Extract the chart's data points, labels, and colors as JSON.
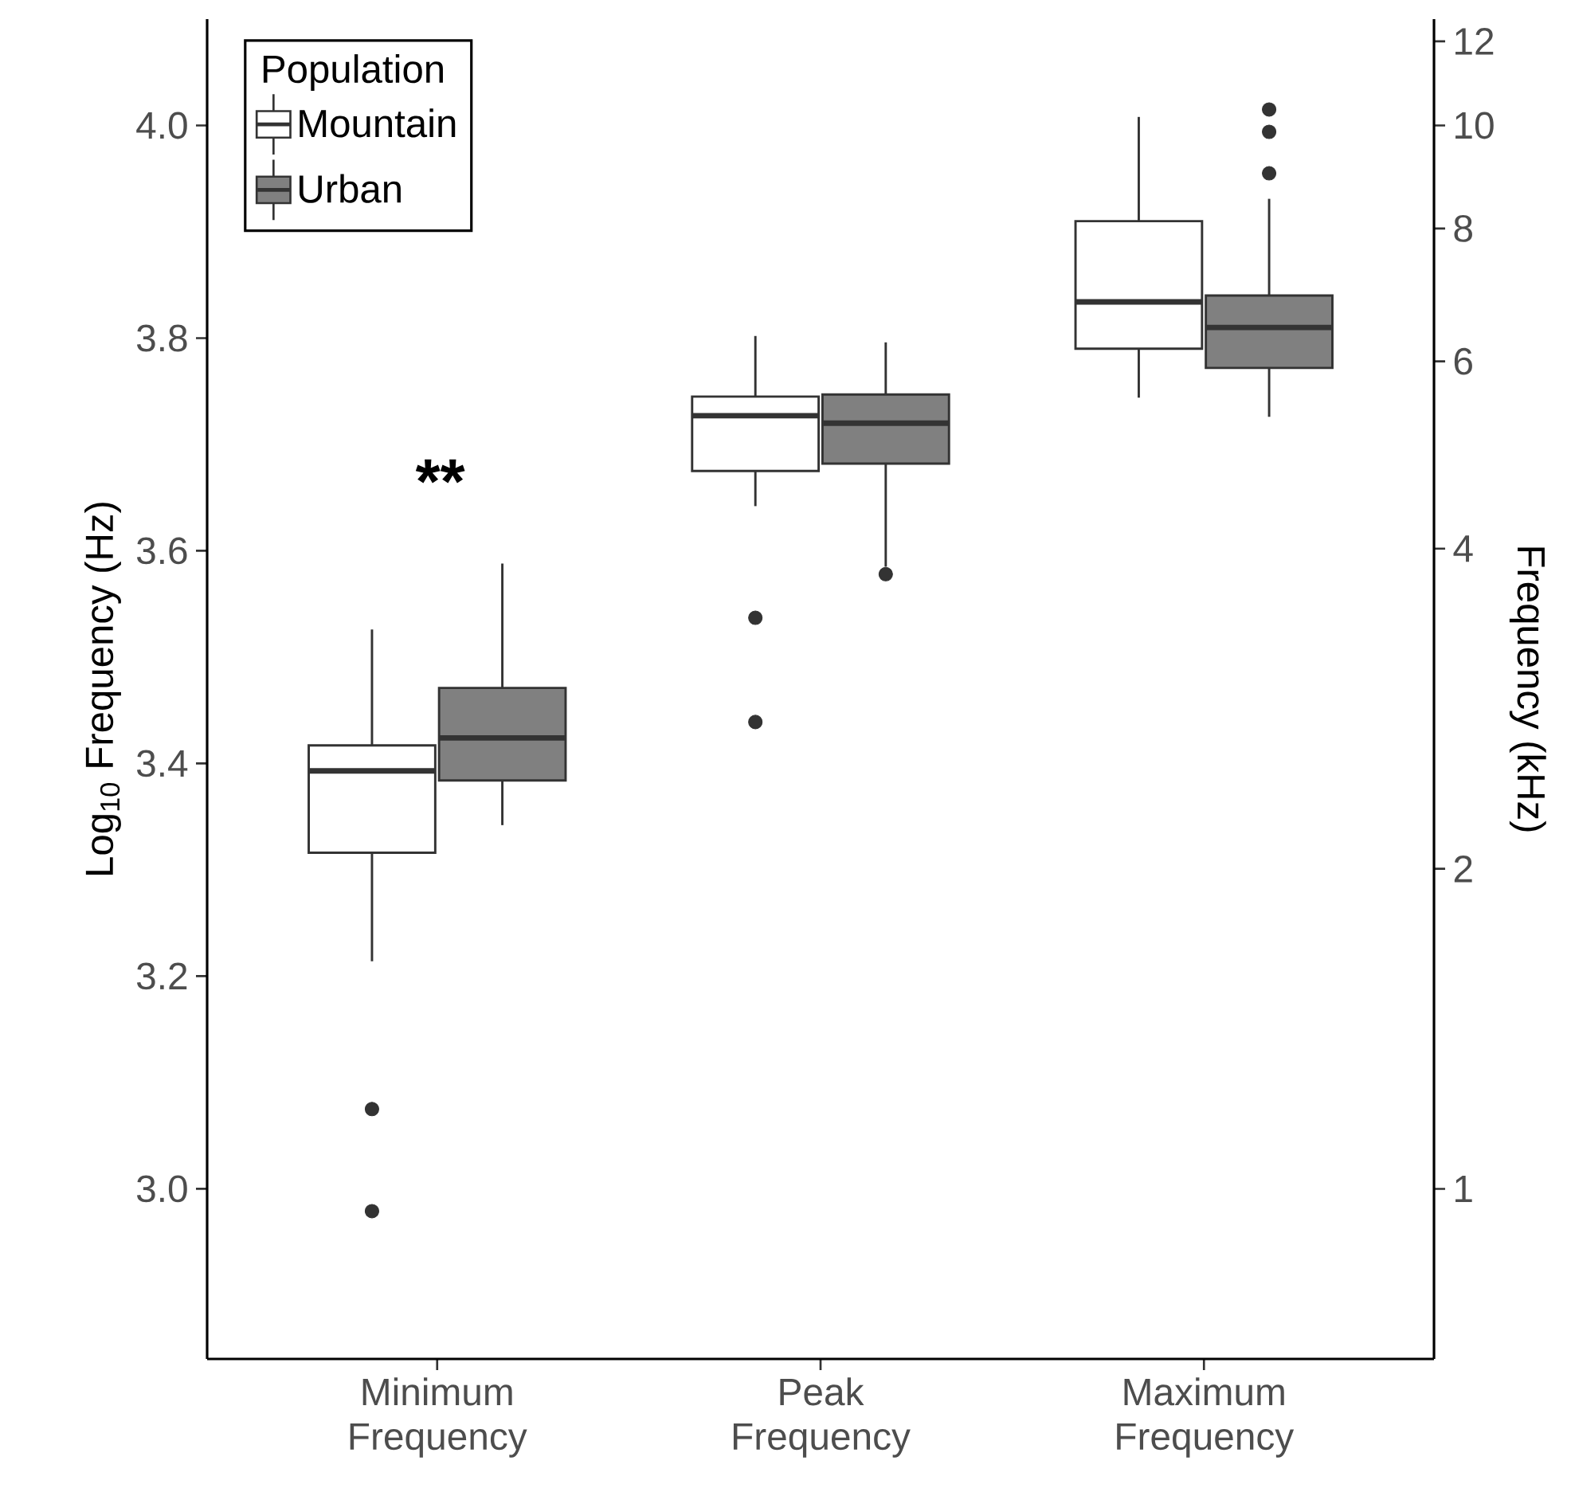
{
  "chart_data": {
    "type": "box",
    "categories": [
      "Minimum Frequency",
      "Peak Frequency",
      "Maximum Frequency"
    ],
    "ylabel": "Log$_{10}$ Frequency (Hz)",
    "y2label": "Frequency (kHz)",
    "legend_title": "Population",
    "legend": "top left",
    "grid": false,
    "log": "y2",
    "ylim": [
      2.84,
      4.1
    ],
    "yticks": [
      {
        "value": 3,
        "label": "3.0"
      },
      3.2,
      3.4,
      3.6,
      3.8,
      {
        "value": 4,
        "label": "4.0"
      }
    ],
    "y2lim": [
      0.692,
      12.59
    ],
    "y2ticks": [
      1,
      2,
      4,
      6,
      8,
      10,
      12
    ],
    "annotations": [
      "**"
    ],
    "series": [
      {
        "name": "Mountain",
        "color": "#ffffff",
        "boxes": [
          {
            "low": 3.214,
            "q1": 3.316,
            "median": 3.393,
            "q3": 3.417,
            "high": 3.526,
            "outliers": [
              3.075,
              2.979
            ]
          },
          {
            "low": 3.642,
            "q1": 3.675,
            "median": 3.727,
            "q3": 3.745,
            "high": 3.802,
            "outliers": [
              3.537,
              3.439
            ]
          },
          {
            "low": 3.744,
            "q1": 3.79,
            "median": 3.834,
            "q3": 3.91,
            "high": 4.008
          }
        ]
      },
      {
        "name": "Urban",
        "color": "#808080",
        "boxes": [
          {
            "low": 3.342,
            "q1": 3.384,
            "median": 3.424,
            "q3": 3.471,
            "high": 3.588
          },
          {
            "low": 3.585,
            "q1": 3.682,
            "median": 3.72,
            "q3": 3.747,
            "high": 3.796,
            "outliers": [
              3.578
            ]
          },
          {
            "low": 3.726,
            "q1": 3.772,
            "median": 3.81,
            "q3": 3.84,
            "high": 3.931,
            "outliers": [
              4.015,
              3.994,
              3.955
            ]
          }
        ]
      }
    ]
  }
}
